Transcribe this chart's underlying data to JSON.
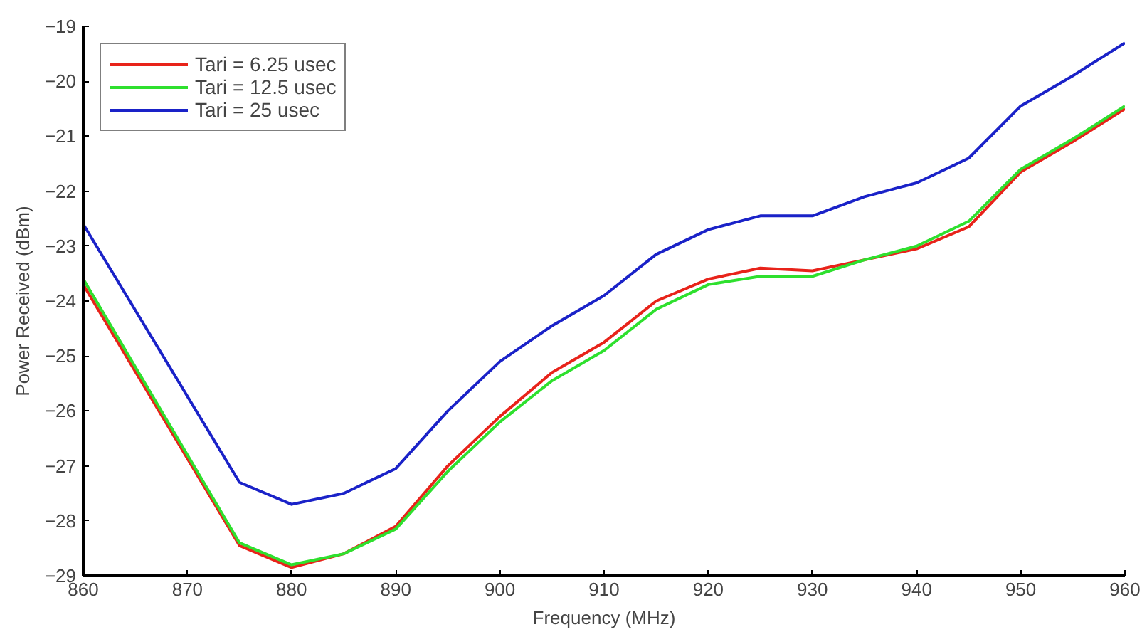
{
  "chart_data": {
    "type": "line",
    "xlabel": "Frequency (MHz)",
    "ylabel": "Power Received (dBm)",
    "x": [
      860,
      875,
      880,
      885,
      890,
      895,
      900,
      905,
      910,
      915,
      920,
      925,
      930,
      935,
      940,
      945,
      950,
      955,
      960
    ],
    "series": [
      {
        "name": "Tari = 6.25 usec",
        "color": "#e8231a",
        "values": [
          -23.7,
          -28.45,
          -28.85,
          -28.6,
          -28.1,
          -27.0,
          -26.1,
          -25.3,
          -24.75,
          -24.0,
          -23.6,
          -23.4,
          -23.45,
          -23.25,
          -23.05,
          -22.65,
          -21.65,
          -21.1,
          -20.5
        ]
      },
      {
        "name": "Tari = 12.5 usec",
        "color": "#2ee02e",
        "values": [
          -23.6,
          -28.4,
          -28.8,
          -28.6,
          -28.15,
          -27.1,
          -26.2,
          -25.45,
          -24.9,
          -24.15,
          -23.7,
          -23.55,
          -23.55,
          -23.25,
          -23.0,
          -22.55,
          -21.6,
          -21.05,
          -20.45
        ]
      },
      {
        "name": "Tari = 25 usec",
        "color": "#1a22c8",
        "values": [
          -22.6,
          -27.3,
          -27.7,
          -27.5,
          -27.05,
          -26.0,
          -25.1,
          -24.45,
          -23.9,
          -23.15,
          -22.7,
          -22.45,
          -22.45,
          -22.1,
          -21.85,
          -21.4,
          -20.45,
          -19.9,
          -19.3
        ]
      }
    ],
    "xlim": [
      860,
      960
    ],
    "xticks": [
      860,
      870,
      880,
      890,
      900,
      910,
      920,
      930,
      940,
      950,
      960
    ],
    "ylim": [
      -29,
      -19
    ],
    "yticks": [
      -29,
      -28,
      -27,
      -26,
      -25,
      -24,
      -23,
      -22,
      -21,
      -20,
      -19
    ],
    "grid": false,
    "legend": "top left",
    "marker": "none",
    "line_style": "solid"
  }
}
